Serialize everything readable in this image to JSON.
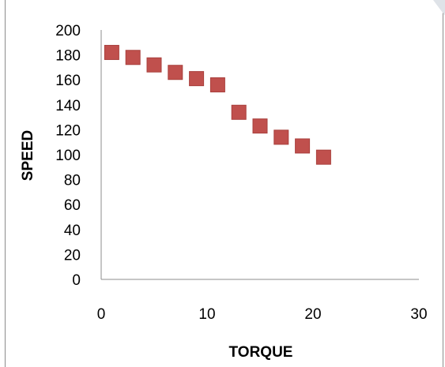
{
  "chart_data": {
    "type": "scatter",
    "title": "",
    "xlabel": "TORQUE",
    "ylabel": "SPEED",
    "xlim": [
      0,
      30
    ],
    "ylim": [
      0,
      200
    ],
    "x_ticks": [
      0,
      10,
      20,
      30
    ],
    "y_ticks": [
      0,
      20,
      40,
      60,
      80,
      100,
      120,
      140,
      160,
      180,
      200
    ],
    "grid": false,
    "legend": "none",
    "marker": "square",
    "marker_color": "#C0504D",
    "series": [
      {
        "x": [
          1,
          3,
          5,
          7,
          9,
          11,
          13,
          15,
          17,
          19,
          21
        ],
        "y": [
          182,
          178,
          172,
          166,
          161,
          156,
          134,
          123,
          114,
          107,
          98
        ]
      }
    ]
  }
}
